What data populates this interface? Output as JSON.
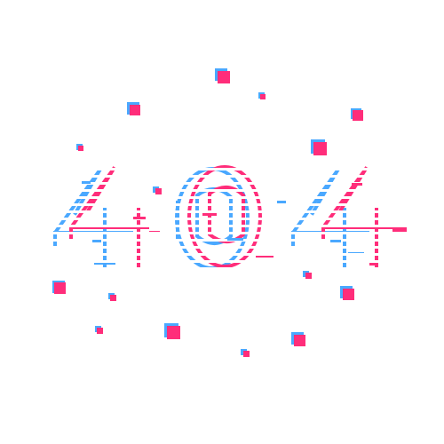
{
  "error_code": "404",
  "colors": {
    "background": "#ffffff",
    "pink": "#ff2d7a",
    "blue": "#4aa8ff"
  },
  "decorations": {
    "particle_count": 18,
    "style": "glitch squares"
  }
}
